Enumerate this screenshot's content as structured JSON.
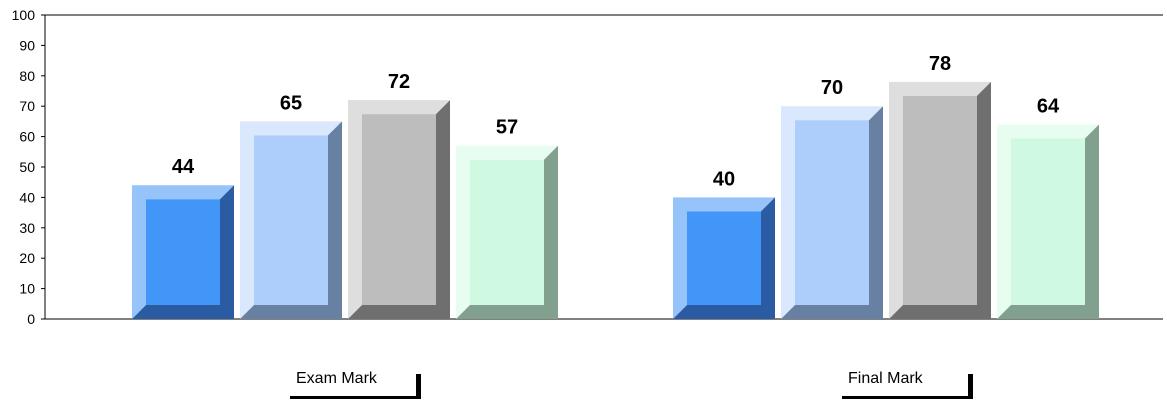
{
  "chart_data": {
    "type": "bar",
    "categories": [
      "Exam Mark",
      "Final Mark"
    ],
    "series": [
      {
        "values": [
          44,
          40
        ],
        "front_color": "#4196F7",
        "bevel_light": "#96C3F9",
        "bevel_dark": "#2B5BA2"
      },
      {
        "values": [
          65,
          70
        ],
        "front_color": "#ADCDFB",
        "bevel_light": "#D9E8FC",
        "bevel_dark": "#6880A2"
      },
      {
        "values": [
          72,
          78
        ],
        "front_color": "#BDBDBD",
        "bevel_light": "#DEDEDE",
        "bevel_dark": "#6F6F6F"
      },
      {
        "values": [
          57,
          64
        ],
        "front_color": "#CFFAE1",
        "bevel_light": "#E6FDEF",
        "bevel_dark": "#82A08E"
      }
    ],
    "ylim": [
      0,
      100
    ],
    "yticks": [
      "0",
      "10",
      "20",
      "30",
      "40",
      "50",
      "60",
      "70",
      "80",
      "90",
      "100"
    ],
    "data_labels": [
      [
        "44",
        "40"
      ],
      [
        "65",
        "70"
      ],
      [
        "72",
        "78"
      ],
      [
        "57",
        "64"
      ]
    ],
    "grid": false,
    "legend": "none"
  }
}
